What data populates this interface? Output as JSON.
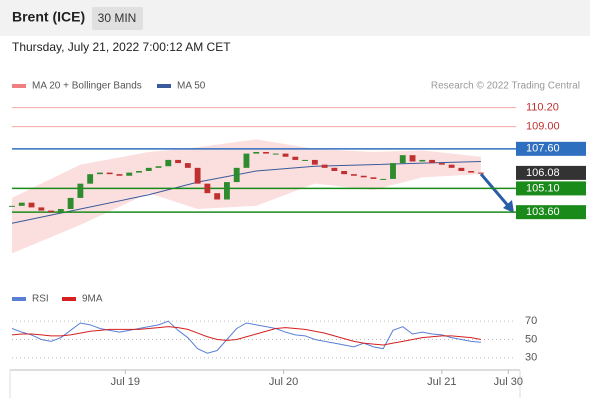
{
  "header": {
    "title": "Brent (ICE)",
    "interval": "30 MIN",
    "timestamp": "Thursday, July 21, 2022 7:00:12 AM CET"
  },
  "chart_data": [
    {
      "type": "candlestick",
      "credit": "Research © 2022 Trading Central",
      "xlim": [
        0,
        52
      ],
      "xticks": [
        {
          "value": 11.6,
          "label": "Jul 19"
        },
        {
          "value": 27.8,
          "label": "Jul 20"
        },
        {
          "value": 44,
          "label": "Jul 21"
        },
        {
          "value": 50.8,
          "label": "Jul 30"
        }
      ],
      "ylim": [
        99,
        111
      ],
      "up_color": "#2e8b2e",
      "down_color": "#c03030",
      "closes": [
        104.0,
        104.2,
        103.9,
        103.7,
        103.6,
        103.8,
        104.5,
        105.4,
        106.0,
        106.1,
        106.0,
        105.9,
        106.1,
        106.2,
        106.4,
        106.5,
        106.9,
        106.7,
        106.4,
        105.4,
        104.8,
        104.4,
        105.5,
        106.4,
        107.3,
        107.4,
        107.3,
        107.3,
        107.1,
        106.9,
        106.9,
        106.6,
        106.4,
        106.2,
        106.0,
        105.9,
        105.8,
        105.7,
        105.7,
        106.7,
        107.2,
        106.8,
        106.9,
        106.7,
        106.6,
        106.4,
        106.2,
        106.1,
        106.08
      ],
      "series": [
        {
          "name": "MA 20 + Bollinger Bands",
          "color": "#f08080",
          "kind": "band",
          "x": [
            0,
            7,
            14,
            19,
            25,
            31,
            37,
            42,
            48
          ],
          "upper": [
            104.5,
            106.6,
            107.4,
            107.7,
            108.2,
            107.6,
            107.4,
            107.5,
            107.1
          ],
          "lower": [
            101.0,
            102.8,
            104.8,
            103.8,
            104.0,
            105.4,
            105.0,
            105.8,
            106.0
          ]
        },
        {
          "name": "MA 50",
          "color": "#3a5a9a",
          "kind": "line",
          "x": [
            0,
            7,
            14,
            19,
            25,
            31,
            37,
            42,
            48
          ],
          "values": [
            102.9,
            103.8,
            104.7,
            105.5,
            106.2,
            106.5,
            106.6,
            106.7,
            106.8
          ]
        }
      ],
      "levels": [
        {
          "value": 110.2,
          "label": "110.20",
          "color": "#f4a6a6",
          "text_color": "#c03030",
          "boxed": false
        },
        {
          "value": 109,
          "label": "109.00",
          "color": "#f4a6a6",
          "text_color": "#c03030",
          "boxed": false
        },
        {
          "value": 107.6,
          "label": "107.60",
          "color": "#2f6fbf",
          "text_color": "#ffffff",
          "boxed": true
        },
        {
          "value": 106.08,
          "label": "106.08",
          "color": "#333333",
          "text_color": "#ffffff",
          "boxed": true,
          "no_line": true
        },
        {
          "value": 105.1,
          "label": "105.10",
          "color": "#1a8a1a",
          "text_color": "#ffffff",
          "boxed": true
        },
        {
          "value": 103.6,
          "label": "103.60",
          "color": "#1a8a1a",
          "text_color": "#ffffff",
          "boxed": true
        }
      ]
    },
    {
      "type": "line",
      "ylim": [
        20,
        80
      ],
      "yticks": [
        30,
        50,
        70
      ],
      "series": [
        {
          "name": "RSI",
          "color": "#5a7fd6",
          "values": [
            62,
            58,
            55,
            50,
            48,
            52,
            60,
            68,
            66,
            62,
            60,
            58,
            60,
            62,
            64,
            66,
            70,
            60,
            52,
            40,
            35,
            38,
            50,
            62,
            68,
            66,
            64,
            62,
            58,
            55,
            54,
            50,
            48,
            46,
            44,
            42,
            46,
            42,
            40,
            60,
            64,
            56,
            58,
            56,
            55,
            52,
            50,
            48,
            47
          ]
        },
        {
          "name": "9MA",
          "color": "#d42020",
          "values": [
            55,
            56,
            56,
            55,
            54,
            54,
            55,
            57,
            59,
            60,
            61,
            61,
            61,
            61,
            62,
            63,
            64,
            63,
            61,
            57,
            53,
            50,
            49,
            50,
            53,
            56,
            59,
            62,
            63,
            62,
            61,
            59,
            57,
            54,
            51,
            48,
            46,
            45,
            44,
            46,
            48,
            50,
            52,
            53,
            54,
            54,
            53,
            52,
            50
          ]
        }
      ]
    }
  ]
}
